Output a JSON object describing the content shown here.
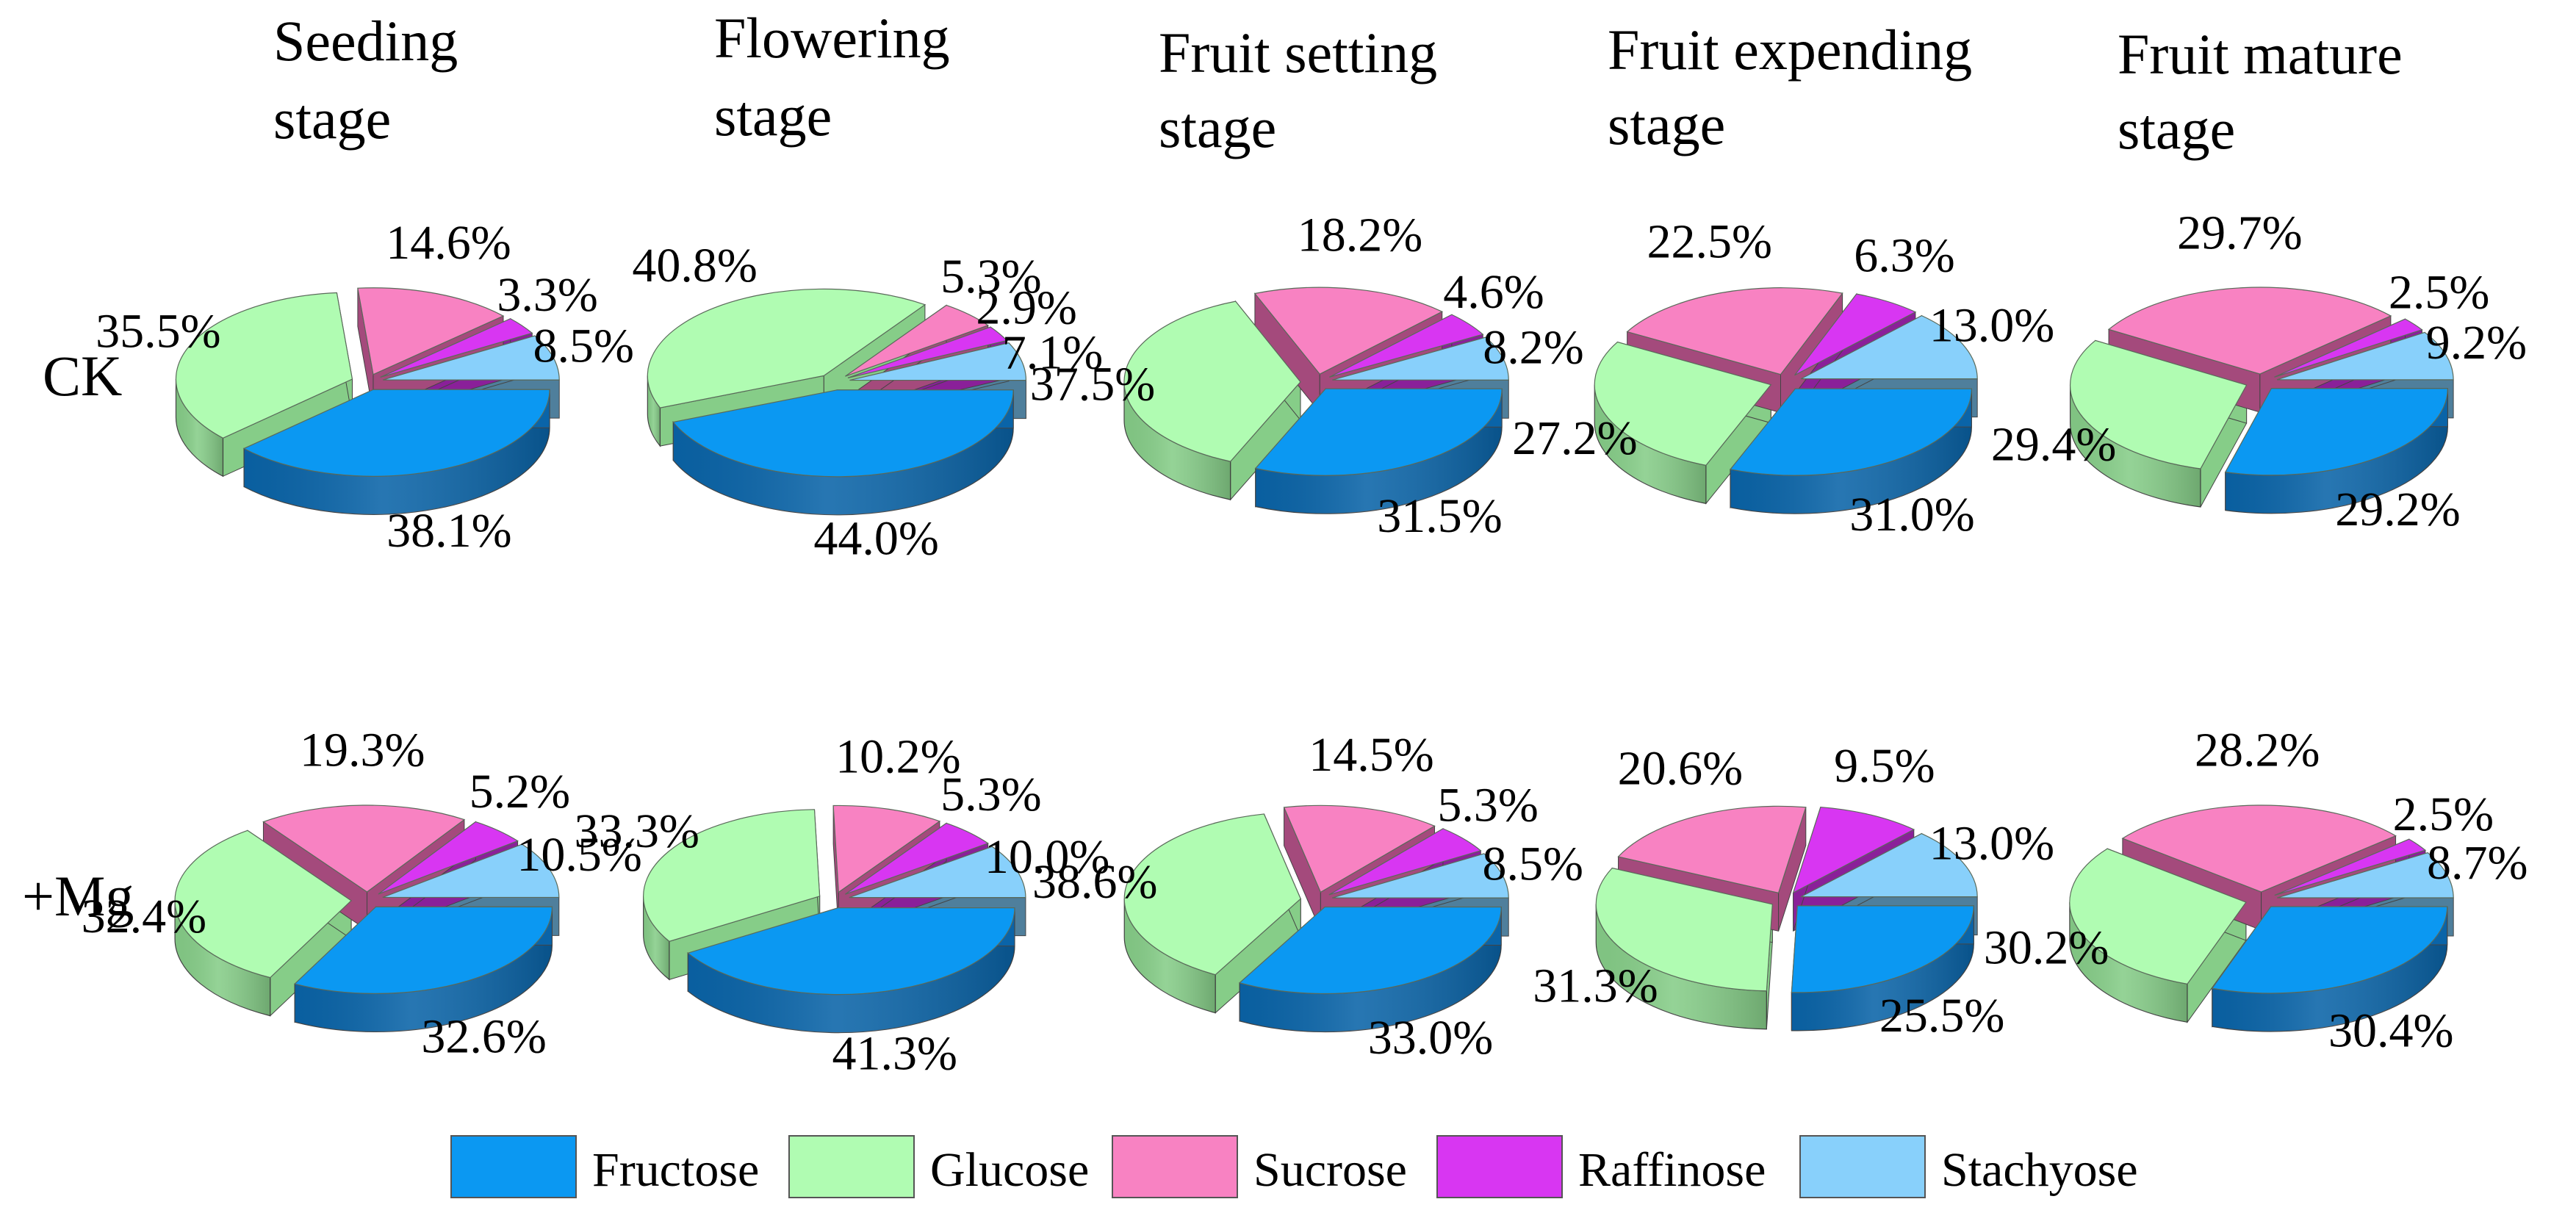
{
  "chart_data": {
    "type": "pie",
    "title": "",
    "series_names": [
      "Fructose",
      "Glucose",
      "Sucrose",
      "Raffinose",
      "Stachyose"
    ],
    "colors": {
      "Fructose": {
        "top": "#0b98f2",
        "side": "#0a64a8"
      },
      "Glucose": {
        "top": "#b0fcb2",
        "side": "#86cd88"
      },
      "Sucrose": {
        "top": "#f882c2",
        "side": "#a44a7c"
      },
      "Raffinose": {
        "top": "#d836f2",
        "side": "#8a2099"
      },
      "Stachyose": {
        "top": "#88d0fb",
        "side": "#4f7f9c"
      }
    },
    "stages": [
      "Seeding stage",
      "Flowering stage",
      "Fruit setting stage",
      "Fruit expending stage",
      "Fruit mature stage"
    ],
    "stage_title_lines": [
      [
        "Seeding",
        "stage"
      ],
      [
        "Flowering",
        "stage"
      ],
      [
        "Fruit setting",
        "stage"
      ],
      [
        "Fruit expending",
        "stage"
      ],
      [
        "Fruit mature",
        "stage"
      ]
    ],
    "treatments": [
      "CK",
      "+Mg"
    ],
    "data": {
      "CK": [
        [
          38.1,
          35.5,
          14.6,
          3.3,
          8.5
        ],
        [
          44.0,
          40.8,
          5.3,
          2.9,
          7.1
        ],
        [
          31.5,
          37.5,
          18.2,
          4.6,
          8.2
        ],
        [
          31.0,
          27.2,
          22.5,
          6.3,
          13.0
        ],
        [
          29.2,
          29.4,
          29.7,
          2.5,
          9.2
        ]
      ],
      "+Mg": [
        [
          32.6,
          32.4,
          19.3,
          5.2,
          10.5
        ],
        [
          41.3,
          33.3,
          10.2,
          5.3,
          10.0
        ],
        [
          33.0,
          38.6,
          14.5,
          5.3,
          8.5
        ],
        [
          25.5,
          31.3,
          20.6,
          9.5,
          13.0
        ],
        [
          30.4,
          30.2,
          28.2,
          2.5,
          8.7
        ]
      ]
    },
    "labels": {
      "CK": [
        [
          "38.1%",
          "35.5%",
          "14.6%",
          "3.3%",
          "8.5%"
        ],
        [
          "44.0%",
          "40.8%",
          "5.3%",
          "2.9%",
          "7.1%"
        ],
        [
          "31.5%",
          "37.5%",
          "18.2%",
          "4.6%",
          "8.2%"
        ],
        [
          "31.0%",
          "27.2%",
          "22.5%",
          "6.3%",
          "13.0%"
        ],
        [
          "29.2%",
          "29.4%",
          "29.7%",
          "2.5%",
          "9.2%"
        ]
      ],
      "+Mg": [
        [
          "32.6%",
          "32.4%",
          "19.3%",
          "5.2%",
          "10.5%"
        ],
        [
          "41.3%",
          "33.3%",
          "10.2%",
          "5.3%",
          "10.0%"
        ],
        [
          "33.0%",
          "38.6%",
          "14.5%",
          "5.3%",
          "8.5%"
        ],
        [
          "25.5%",
          "31.3%",
          "20.6%",
          "9.5%",
          "13.0%"
        ],
        [
          "30.4%",
          "30.2%",
          "28.2%",
          "2.5%",
          "8.7%"
        ]
      ]
    },
    "legend_position": "bottom-center"
  }
}
